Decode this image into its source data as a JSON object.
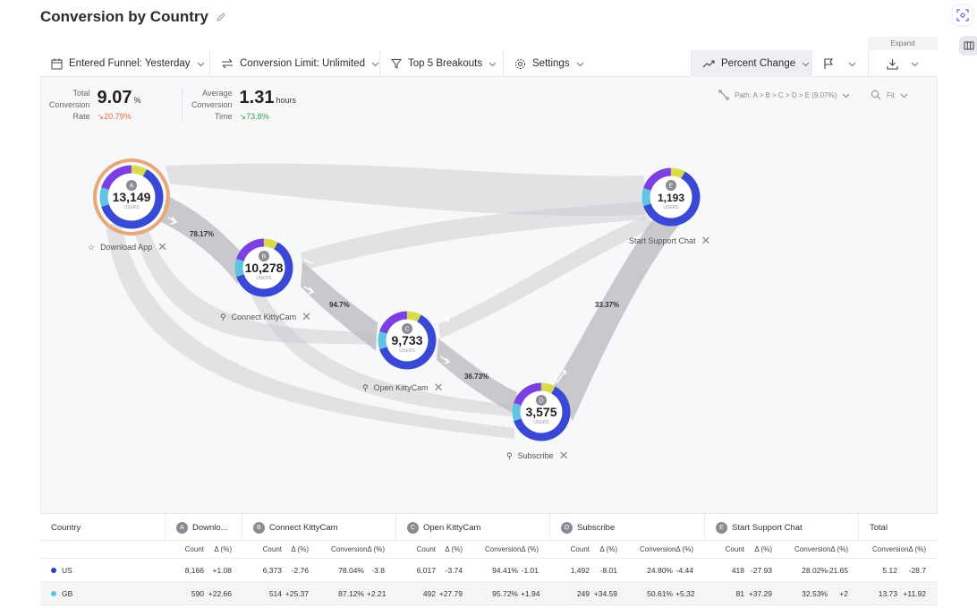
{
  "title": "Conversion by Country",
  "expand_label": "Expand",
  "toolbar": {
    "entered_funnel": "Entered Funnel: Yesterday",
    "conversion_limit": "Conversion Limit: Unlimited",
    "breakouts": "Top 5 Breakouts",
    "settings": "Settings",
    "percent_change": "Percent Change"
  },
  "metrics": {
    "total": {
      "label_1": "Total",
      "label_2": "Conversion",
      "label_3": "Rate",
      "value": "9.07",
      "unit": "%",
      "delta": "20.79%"
    },
    "average": {
      "label_1": "Average",
      "label_2": "Conversion",
      "label_3": "Time",
      "value": "1.31",
      "unit": "hours",
      "delta": "73.8%"
    }
  },
  "path_selector": "Path: A > B > C > D > E (9.07%)",
  "fit_selector": "Fit",
  "colors": {
    "accent": "#3a48d6",
    "purple": "#7b3fe4",
    "cyan": "#5ec4e0",
    "yellow": "#d9db4a",
    "flow": "#c8c8cc"
  },
  "nodes": [
    {
      "letter": "A",
      "count": "13,149",
      "sub": "USERS",
      "name": "Download App"
    },
    {
      "letter": "B",
      "count": "10,278",
      "sub": "USERS",
      "name": "Connect KittyCam"
    },
    {
      "letter": "C",
      "count": "9,733",
      "sub": "USERS",
      "name": "Open KittyCam"
    },
    {
      "letter": "D",
      "count": "3,575",
      "sub": "USERS",
      "name": "Subscribe"
    },
    {
      "letter": "E",
      "count": "1,193",
      "sub": "USERS",
      "name": "Start Support Chat"
    }
  ],
  "conversions": [
    "78.17%",
    "94.7%",
    "36.73%",
    "33.37%"
  ],
  "table": {
    "country_header": "Country",
    "headers": [
      "Downlo...",
      "Connect KittyCam",
      "Open KittyCam",
      "Subscribe",
      "Start Support Chat",
      "Total"
    ],
    "sub_count": "Count",
    "sub_delta": "Δ (%)",
    "sub_conv": "ConversionΔ (%)",
    "rows": [
      {
        "country": "US",
        "color": "#2d3fc4",
        "a_count": "8,166",
        "a_delta": "+1.08",
        "b_count": "6,373",
        "b_delta": "-2.76",
        "b_conv": "78.04%",
        "b_cdelta": "-3.8",
        "c_count": "6,017",
        "c_delta": "-3.74",
        "c_conv": "94.41%",
        "c_cdelta": "-1.01",
        "d_count": "1,492",
        "d_delta": "-8.01",
        "d_conv": "24.80%",
        "d_cdelta": "-4.44",
        "e_count": "418",
        "e_delta": "-27.93",
        "e_conv": "28.02%",
        "e_cdelta": "-21.65",
        "t_conv": "5.12",
        "t_delta": "-28.7"
      },
      {
        "country": "GB",
        "color": "#5ec4e0",
        "a_count": "590",
        "a_delta": "+22.66",
        "b_count": "514",
        "b_delta": "+25.37",
        "b_conv": "87.12%",
        "b_cdelta": "+2.21",
        "c_count": "492",
        "c_delta": "+27.79",
        "c_conv": "95.72%",
        "c_cdelta": "+1.94",
        "d_count": "249",
        "d_delta": "+34.59",
        "d_conv": "50.61%",
        "d_cdelta": "+5.32",
        "e_count": "81",
        "e_delta": "+37.29",
        "e_conv": "32.53%",
        "e_cdelta": "+2",
        "t_conv": "13.73",
        "t_delta": "+11.92"
      }
    ]
  }
}
